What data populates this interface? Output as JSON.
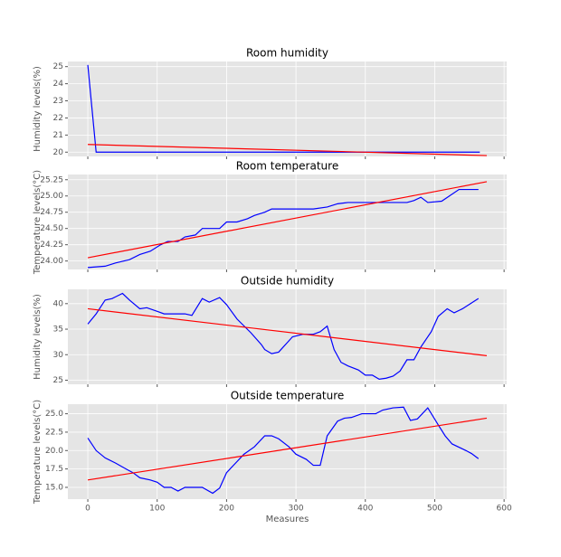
{
  "chart_data": [
    {
      "type": "line",
      "title": "Room humidity",
      "ylabel": "Humidity levels(%)",
      "xlim": [
        -28.75,
        603.75
      ],
      "xticks": [
        0,
        100,
        200,
        300,
        400,
        500,
        600
      ],
      "ylim": [
        19.75,
        25.3
      ],
      "yticks": [
        20,
        21,
        22,
        23,
        24,
        25
      ],
      "grid": true,
      "series": [
        {
          "color": "blue",
          "x": [
            0,
            12,
            565
          ],
          "values": [
            25.1,
            20.0,
            20.0
          ]
        },
        {
          "color": "red",
          "x": [
            0,
            575
          ],
          "values": [
            20.45,
            19.8
          ]
        }
      ]
    },
    {
      "type": "line",
      "title": "Room temperature",
      "ylabel": "Temperature levels(°C)",
      "xlim": [
        -28.75,
        603.75
      ],
      "xticks": [
        0,
        100,
        200,
        300,
        400,
        500,
        600
      ],
      "ylim": [
        23.87,
        25.33
      ],
      "yticks": [
        {
          "value": 24,
          "label": "24.00"
        },
        {
          "value": 24.25,
          "label": "24.25"
        },
        {
          "value": 24.5,
          "label": "24.50"
        },
        {
          "value": 24.75,
          "label": "24.75"
        },
        {
          "value": 25,
          "label": "25.00"
        },
        {
          "value": 25.25,
          "label": "25.25"
        }
      ],
      "grid": true,
      "series": [
        {
          "color": "blue",
          "x": [
            0,
            25,
            40,
            60,
            75,
            90,
            105,
            115,
            130,
            140,
            155,
            165,
            190,
            200,
            215,
            230,
            240,
            255,
            265,
            325,
            345,
            360,
            375,
            420,
            460,
            470,
            480,
            490,
            510,
            535,
            563
          ],
          "values": [
            23.9,
            23.92,
            23.97,
            24.02,
            24.1,
            24.15,
            24.25,
            24.3,
            24.3,
            24.37,
            24.4,
            24.5,
            24.5,
            24.6,
            24.6,
            24.65,
            24.7,
            24.75,
            24.8,
            24.8,
            24.83,
            24.88,
            24.9,
            24.9,
            24.9,
            24.93,
            24.98,
            24.9,
            24.92,
            25.1,
            25.1
          ]
        },
        {
          "color": "red",
          "x": [
            0,
            575
          ],
          "values": [
            24.05,
            25.22
          ]
        }
      ]
    },
    {
      "type": "line",
      "title": "Outside humidity",
      "ylabel": "Humidity levels(%)",
      "xlim": [
        -28.75,
        603.75
      ],
      "xticks": [
        0,
        100,
        200,
        300,
        400,
        500,
        600
      ],
      "ylim": [
        24.2,
        42.8
      ],
      "yticks": [
        25,
        30,
        35,
        40
      ],
      "grid": true,
      "series": [
        {
          "color": "blue",
          "x": [
            0,
            12,
            25,
            35,
            50,
            60,
            75,
            85,
            100,
            110,
            140,
            150,
            165,
            175,
            190,
            200,
            215,
            235,
            250,
            255,
            265,
            275,
            285,
            295,
            310,
            325,
            335,
            345,
            355,
            365,
            375,
            390,
            400,
            410,
            420,
            430,
            440,
            450,
            460,
            470,
            480,
            495,
            505,
            518,
            528,
            540,
            563
          ],
          "values": [
            36,
            38,
            40.7,
            41,
            42,
            40.7,
            39,
            39.2,
            38.5,
            38,
            38,
            37.7,
            41,
            40.3,
            41.2,
            39.8,
            37,
            34.3,
            32,
            31,
            30.2,
            30.5,
            32,
            33.5,
            34,
            34,
            34.5,
            35.6,
            31,
            28.5,
            27.8,
            27,
            26,
            26,
            25.2,
            25.4,
            25.8,
            26.8,
            29,
            29,
            31.5,
            34.5,
            37.5,
            39,
            38.2,
            39,
            41
          ]
        },
        {
          "color": "red",
          "x": [
            0,
            575
          ],
          "values": [
            39,
            29.8
          ]
        }
      ]
    },
    {
      "type": "line",
      "title": "Outside temperature",
      "ylabel": "Temperature levels(°C)",
      "xlabel": "Measures",
      "xlim": [
        -28.75,
        603.75
      ],
      "xticks": [
        0,
        100,
        200,
        300,
        400,
        500,
        600
      ],
      "ylim": [
        13.4,
        26.3
      ],
      "yticks": [
        {
          "value": 15,
          "label": "15.0"
        },
        {
          "value": 17.5,
          "label": "17.5"
        },
        {
          "value": 20,
          "label": "20.0"
        },
        {
          "value": 22.5,
          "label": "22.5"
        },
        {
          "value": 25,
          "label": "25.0"
        }
      ],
      "grid": true,
      "series": [
        {
          "color": "blue",
          "x": [
            0,
            12,
            25,
            40,
            55,
            65,
            75,
            90,
            100,
            110,
            120,
            130,
            140,
            155,
            165,
            180,
            190,
            200,
            215,
            225,
            240,
            255,
            265,
            275,
            290,
            300,
            315,
            325,
            335,
            345,
            360,
            370,
            380,
            395,
            405,
            415,
            425,
            440,
            455,
            465,
            475,
            490,
            505,
            515,
            525,
            545,
            553,
            563
          ],
          "values": [
            21.7,
            20,
            19,
            18.3,
            17.5,
            17,
            16.3,
            16,
            15.7,
            15,
            15,
            14.5,
            15,
            15,
            15,
            14.2,
            14.9,
            17,
            18.5,
            19.5,
            20.5,
            22,
            22,
            21.6,
            20.5,
            19.5,
            18.8,
            18,
            18,
            22,
            24,
            24.4,
            24.5,
            25,
            25,
            25,
            25.5,
            25.8,
            25.9,
            24.1,
            24.3,
            25.8,
            23.5,
            22,
            20.9,
            20,
            19.6,
            18.9
          ]
        },
        {
          "color": "red",
          "x": [
            0,
            575
          ],
          "values": [
            16,
            24.4
          ]
        }
      ]
    }
  ]
}
